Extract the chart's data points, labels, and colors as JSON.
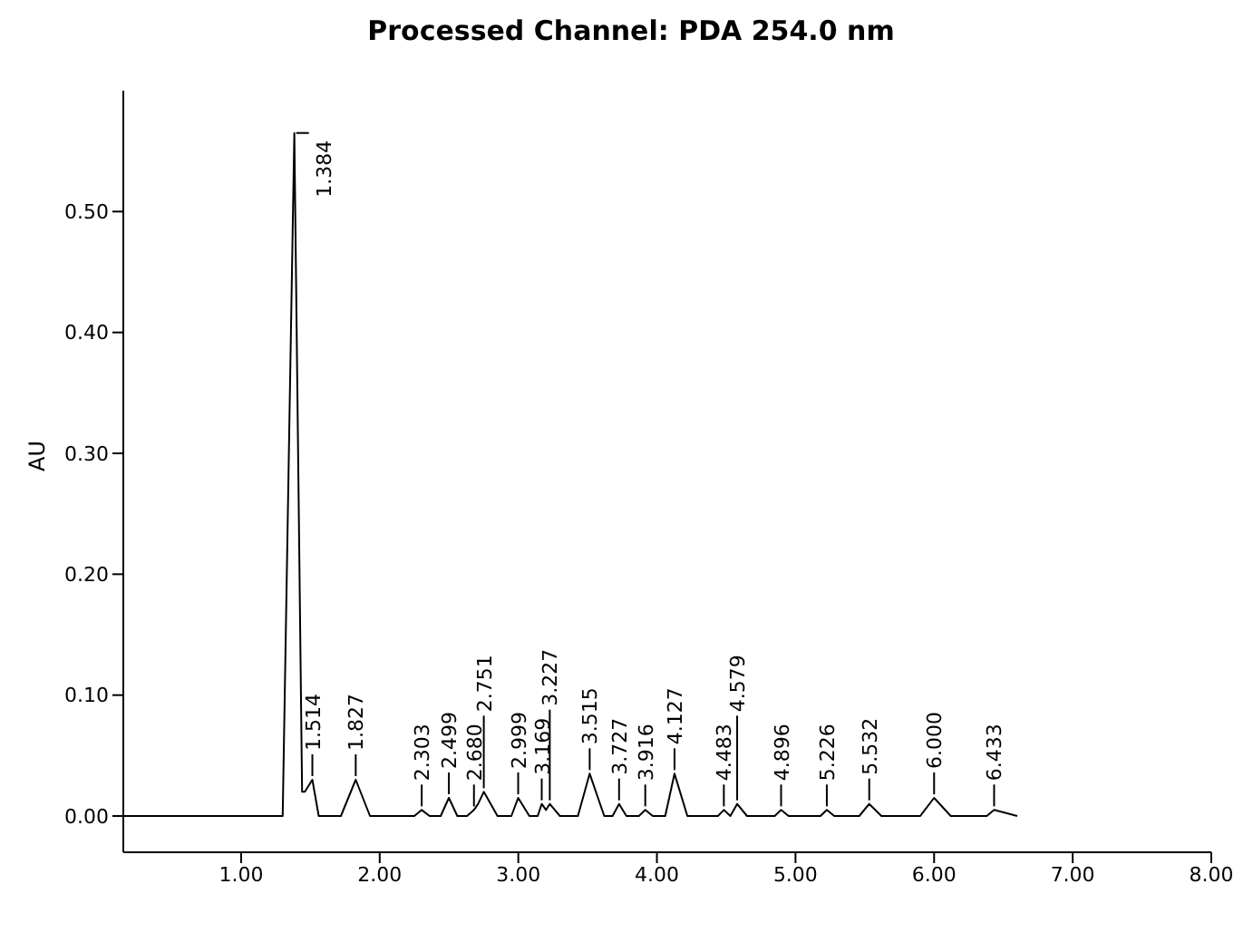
{
  "chart_data": {
    "type": "line",
    "title": "Processed Channel:  PDA 254.0 nm",
    "ylabel": "AU",
    "x": [
      0.15,
      1.3,
      1.384,
      1.44,
      1.46,
      1.514,
      1.56,
      1.72,
      1.827,
      1.93,
      2.25,
      2.303,
      2.36,
      2.44,
      2.499,
      2.56,
      2.63,
      2.68,
      2.71,
      2.751,
      2.85,
      2.95,
      2.999,
      3.08,
      3.14,
      3.169,
      3.2,
      3.227,
      3.3,
      3.43,
      3.515,
      3.62,
      3.68,
      3.727,
      3.78,
      3.87,
      3.916,
      3.97,
      4.06,
      4.127,
      4.22,
      4.44,
      4.483,
      4.53,
      4.579,
      4.65,
      4.85,
      4.896,
      4.95,
      5.18,
      5.226,
      5.28,
      5.46,
      5.532,
      5.62,
      5.9,
      6.0,
      6.12,
      6.38,
      6.433,
      6.6
    ],
    "series": [
      {
        "color": "#000000",
        "values": [
          0,
          0,
          0.565,
          0.02,
          0.02,
          0.03,
          0,
          0,
          0.03,
          0,
          0,
          0.005,
          0,
          0,
          0.015,
          0,
          0,
          0.005,
          0.01,
          0.02,
          0,
          0,
          0.015,
          0,
          0,
          0.01,
          0.005,
          0.01,
          0,
          0,
          0.035,
          0,
          0,
          0.01,
          0,
          0,
          0.005,
          0,
          0,
          0.035,
          0,
          0,
          0.005,
          0,
          0.01,
          0,
          0,
          0.005,
          0,
          0,
          0.005,
          0,
          0,
          0.01,
          0,
          0,
          0.015,
          0,
          0,
          0.005,
          0
        ]
      }
    ],
    "xlim": [
      0.15,
      8.0
    ],
    "ylim": [
      -0.03,
      0.6
    ],
    "xticks": [
      {
        "value": 1,
        "label": "1.00"
      },
      {
        "value": 2,
        "label": "2.00"
      },
      {
        "value": 3,
        "label": "3.00"
      },
      {
        "value": 4,
        "label": "4.00"
      },
      {
        "value": 5,
        "label": "5.00"
      },
      {
        "value": 6,
        "label": "6.00"
      },
      {
        "value": 7,
        "label": "7.00"
      },
      {
        "value": 8,
        "label": "8.00"
      }
    ],
    "yticks": [
      {
        "value": 0,
        "label": "0.00"
      },
      {
        "value": 0.1,
        "label": "0.10"
      },
      {
        "value": 0.2,
        "label": "0.20"
      },
      {
        "value": 0.3,
        "label": "0.30"
      },
      {
        "value": 0.4,
        "label": "0.40"
      },
      {
        "value": 0.5,
        "label": "0.50"
      }
    ],
    "grid": false,
    "marker": "none",
    "line_style": "solid",
    "annotations": [
      {
        "text": "1.384",
        "x": 1.384,
        "y": 0.565
      },
      {
        "text": "1.514",
        "x": 1.514,
        "y": 0.03
      },
      {
        "text": "1.827",
        "x": 1.827,
        "y": 0.03
      },
      {
        "text": "2.303",
        "x": 2.303,
        "y": 0.005
      },
      {
        "text": "2.499",
        "x": 2.499,
        "y": 0.015
      },
      {
        "text": "2.680",
        "x": 2.68,
        "y": 0.005
      },
      {
        "text": "2.751",
        "x": 2.751,
        "y": 0.02
      },
      {
        "text": "2.999",
        "x": 2.999,
        "y": 0.015
      },
      {
        "text": "3.169",
        "x": 3.169,
        "y": 0.01
      },
      {
        "text": "3.227",
        "x": 3.227,
        "y": 0.01
      },
      {
        "text": "3.515",
        "x": 3.515,
        "y": 0.035
      },
      {
        "text": "3.727",
        "x": 3.727,
        "y": 0.01
      },
      {
        "text": "3.916",
        "x": 3.916,
        "y": 0.005
      },
      {
        "text": "4.127",
        "x": 4.127,
        "y": 0.035
      },
      {
        "text": "4.483",
        "x": 4.483,
        "y": 0.005
      },
      {
        "text": "4.579",
        "x": 4.579,
        "y": 0.01
      },
      {
        "text": "4.896",
        "x": 4.896,
        "y": 0.005
      },
      {
        "text": "5.226",
        "x": 5.226,
        "y": 0.005
      },
      {
        "text": "5.532",
        "x": 5.532,
        "y": 0.01
      },
      {
        "text": "6.000",
        "x": 6.0,
        "y": 0.015
      },
      {
        "text": "6.433",
        "x": 6.433,
        "y": 0.005
      }
    ]
  }
}
